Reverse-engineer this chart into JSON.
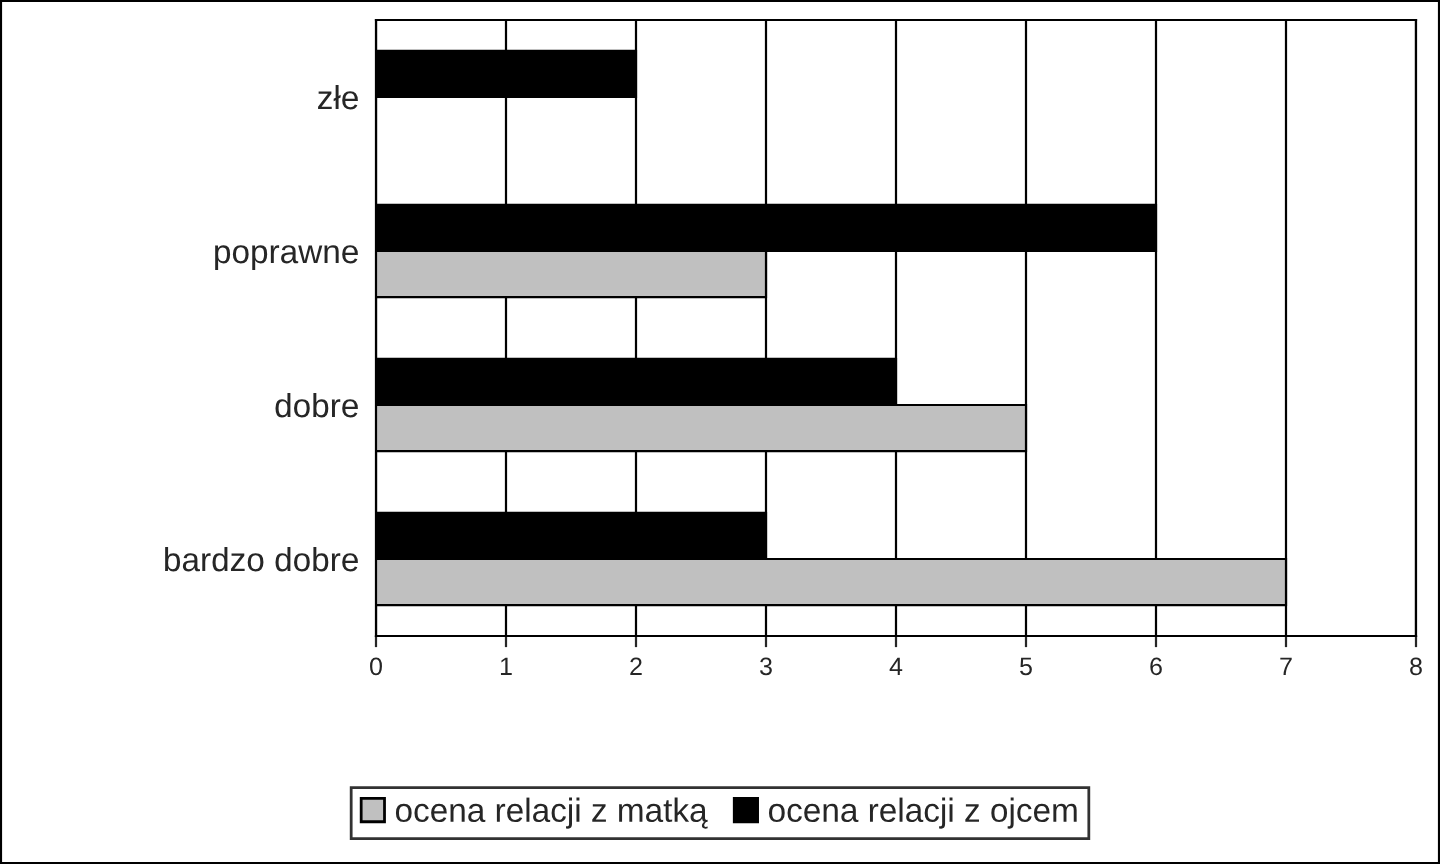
{
  "chart_data": {
    "type": "bar",
    "orientation": "horizontal",
    "categories": [
      "złe",
      "poprawne",
      "dobre",
      "bardzo dobre"
    ],
    "series": [
      {
        "name": "ocena relacji z matką",
        "color": "#c0c0c0",
        "values": [
          null,
          3,
          5,
          7
        ]
      },
      {
        "name": "ocena relacji z ojcem",
        "color": "#000000",
        "values": [
          2,
          6,
          4,
          3
        ]
      }
    ],
    "xlim": [
      0,
      8
    ],
    "xticks": [
      0,
      1,
      2,
      3,
      4,
      5,
      6,
      7,
      8
    ],
    "grid": "x",
    "legend": "bottom"
  }
}
